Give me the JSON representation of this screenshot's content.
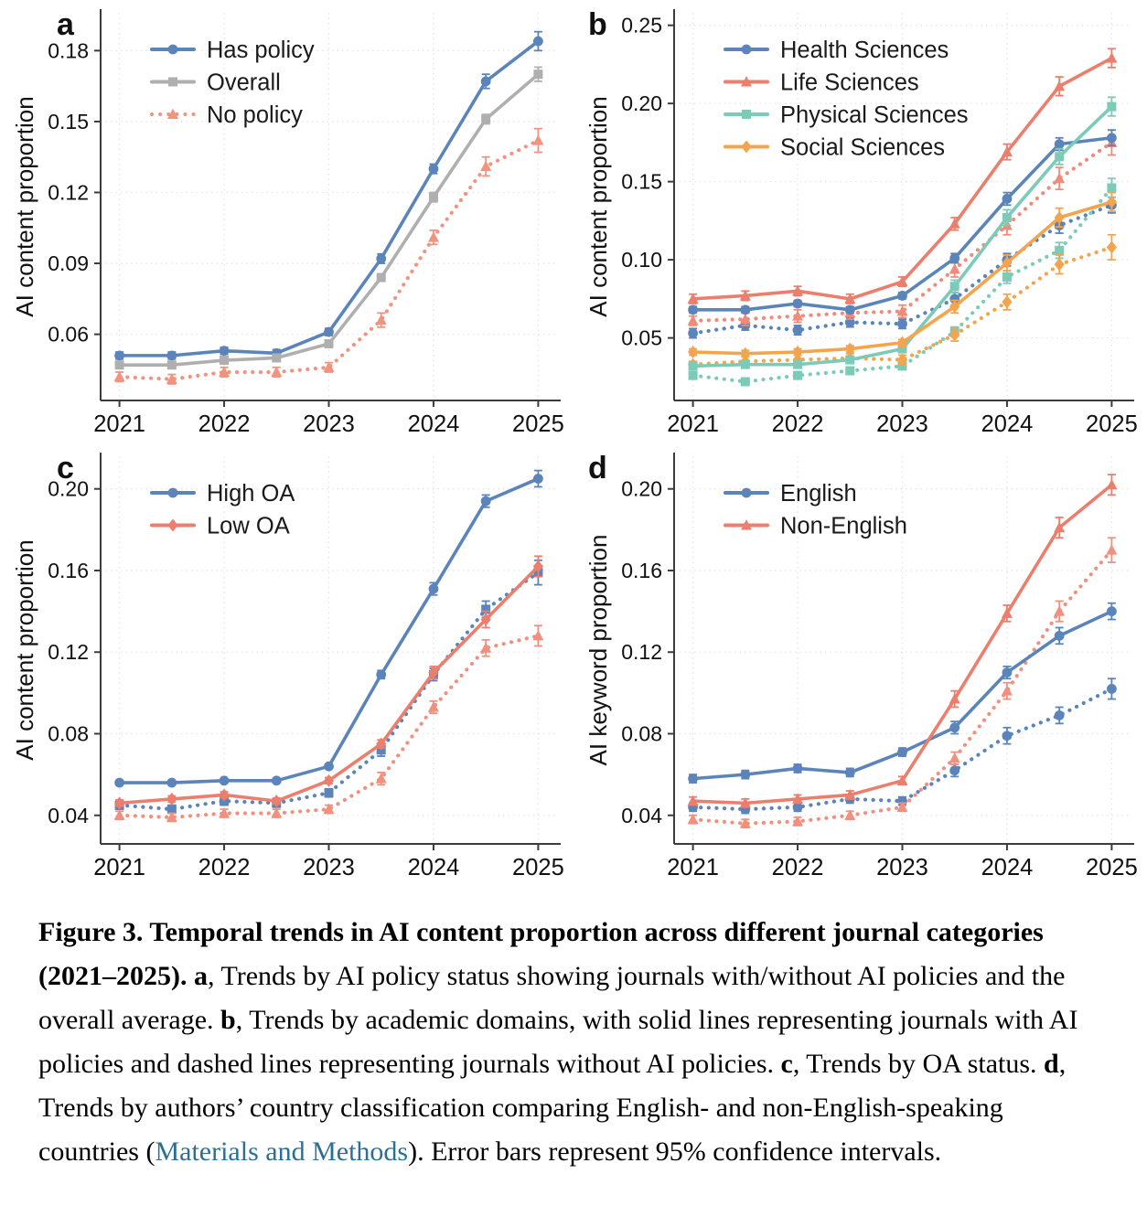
{
  "figure_label": "Figure 3",
  "chart_data": [
    {
      "type": "line",
      "panel_letter": "a",
      "ylabel": "AI content proportion",
      "yticks": [
        0.06,
        0.09,
        0.12,
        0.15,
        0.18
      ],
      "ylim": [
        0.032,
        0.196
      ],
      "x": [
        2021,
        2021.5,
        2022,
        2022.5,
        2023,
        2023.5,
        2024,
        2024.5,
        2025
      ],
      "xticks": [
        2021,
        2022,
        2023,
        2024,
        2025
      ],
      "xlim": [
        2020.82,
        2025.18
      ],
      "grid": true,
      "legend_position": "top-left",
      "series": [
        {
          "name": "Has policy",
          "color": "#5b84ba",
          "marker": "circle",
          "line": "solid",
          "legend": true,
          "values": [
            0.051,
            0.051,
            0.053,
            0.052,
            0.061,
            0.092,
            0.13,
            0.167,
            0.184
          ],
          "err": [
            0.0015,
            0.0015,
            0.0015,
            0.0015,
            0.0015,
            0.002,
            0.002,
            0.003,
            0.004
          ]
        },
        {
          "name": "Overall",
          "color": "#afafaf",
          "marker": "square",
          "line": "solid",
          "legend": true,
          "values": [
            0.047,
            0.047,
            0.049,
            0.05,
            0.056,
            0.084,
            0.118,
            0.151,
            0.17
          ],
          "err": [
            0.001,
            0.001,
            0.001,
            0.001,
            0.001,
            0.0015,
            0.002,
            0.002,
            0.003
          ]
        },
        {
          "name": "No policy",
          "color": "#f29380",
          "marker": "triangle",
          "line": "dotted",
          "legend": true,
          "values": [
            0.042,
            0.041,
            0.044,
            0.044,
            0.046,
            0.066,
            0.101,
            0.131,
            0.142
          ],
          "err": [
            0.002,
            0.002,
            0.002,
            0.002,
            0.002,
            0.003,
            0.003,
            0.004,
            0.005
          ]
        }
      ]
    },
    {
      "type": "line",
      "panel_letter": "b",
      "ylabel": "AI content proportion",
      "yticks": [
        0.05,
        0.1,
        0.15,
        0.2,
        0.25
      ],
      "ylim": [
        0.01,
        0.258
      ],
      "x": [
        2021,
        2021.5,
        2022,
        2022.5,
        2023,
        2023.5,
        2024,
        2024.5,
        2025
      ],
      "xticks": [
        2021,
        2022,
        2023,
        2024,
        2025
      ],
      "xlim": [
        2020.82,
        2025.18
      ],
      "grid": true,
      "legend_position": "top-left",
      "series": [
        {
          "name": "Health Sciences (no policy)",
          "color": "#5b84ba",
          "marker": "circle",
          "line": "dotted",
          "legend": false,
          "values": [
            0.053,
            0.058,
            0.055,
            0.06,
            0.059,
            0.075,
            0.1,
            0.122,
            0.135
          ],
          "err": [
            0.003,
            0.003,
            0.003,
            0.003,
            0.003,
            0.004,
            0.004,
            0.005,
            0.005
          ]
        },
        {
          "name": "Life Sciences (no policy)",
          "color": "#ef8b7b",
          "marker": "triangle",
          "line": "dotted",
          "legend": false,
          "values": [
            0.061,
            0.062,
            0.064,
            0.066,
            0.067,
            0.094,
            0.122,
            0.152,
            0.175
          ],
          "err": [
            0.003,
            0.004,
            0.004,
            0.004,
            0.004,
            0.005,
            0.006,
            0.007,
            0.008
          ]
        },
        {
          "name": "Physical Sciences (no policy)",
          "color": "#7ccbb8",
          "marker": "square",
          "line": "dotted",
          "legend": false,
          "values": [
            0.026,
            0.022,
            0.026,
            0.029,
            0.032,
            0.054,
            0.089,
            0.106,
            0.146
          ],
          "err": [
            0.002,
            0.002,
            0.002,
            0.002,
            0.002,
            0.003,
            0.004,
            0.005,
            0.006
          ]
        },
        {
          "name": "Social Sciences (no policy)",
          "color": "#f4a44c",
          "marker": "diamond",
          "line": "dotted",
          "legend": false,
          "values": [
            0.033,
            0.035,
            0.036,
            0.037,
            0.036,
            0.052,
            0.073,
            0.097,
            0.108
          ],
          "err": [
            0.002,
            0.003,
            0.003,
            0.003,
            0.003,
            0.004,
            0.005,
            0.006,
            0.008
          ]
        },
        {
          "name": "Health Sciences",
          "color": "#5b84ba",
          "marker": "circle",
          "line": "solid",
          "legend": true,
          "values": [
            0.068,
            0.068,
            0.072,
            0.068,
            0.077,
            0.101,
            0.139,
            0.174,
            0.178
          ],
          "err": [
            0.002,
            0.002,
            0.002,
            0.002,
            0.002,
            0.003,
            0.004,
            0.004,
            0.005
          ]
        },
        {
          "name": "Life Sciences",
          "color": "#ec7e6d",
          "marker": "triangle",
          "line": "solid",
          "legend": true,
          "values": [
            0.075,
            0.077,
            0.08,
            0.075,
            0.086,
            0.123,
            0.169,
            0.211,
            0.229
          ],
          "err": [
            0.003,
            0.003,
            0.003,
            0.003,
            0.003,
            0.004,
            0.005,
            0.006,
            0.006
          ]
        },
        {
          "name": "Physical Sciences",
          "color": "#7ccbb8",
          "marker": "square",
          "line": "solid",
          "legend": true,
          "values": [
            0.032,
            0.033,
            0.033,
            0.036,
            0.043,
            0.083,
            0.127,
            0.166,
            0.198
          ],
          "err": [
            0.002,
            0.002,
            0.002,
            0.002,
            0.002,
            0.004,
            0.005,
            0.005,
            0.006
          ]
        },
        {
          "name": "Social Sciences",
          "color": "#f4a44c",
          "marker": "diamond",
          "line": "solid",
          "legend": true,
          "values": [
            0.041,
            0.04,
            0.041,
            0.043,
            0.047,
            0.07,
            0.098,
            0.127,
            0.137
          ],
          "err": [
            0.002,
            0.002,
            0.002,
            0.002,
            0.002,
            0.004,
            0.005,
            0.006,
            0.006
          ]
        }
      ]
    },
    {
      "type": "line",
      "panel_letter": "c",
      "ylabel": "AI content proportion",
      "yticks": [
        0.04,
        0.08,
        0.12,
        0.16,
        0.2
      ],
      "ylim": [
        0.026,
        0.216
      ],
      "x": [
        2021,
        2021.5,
        2022,
        2022.5,
        2023,
        2023.5,
        2024,
        2024.5,
        2025
      ],
      "xticks": [
        2021,
        2022,
        2023,
        2024,
        2025
      ],
      "xlim": [
        2020.82,
        2025.18
      ],
      "grid": true,
      "legend_position": "top-left",
      "series": [
        {
          "name": "High OA (no policy)",
          "color": "#5b84ba",
          "marker": "square",
          "line": "dotted",
          "legend": false,
          "values": [
            0.045,
            0.043,
            0.047,
            0.046,
            0.051,
            0.072,
            0.109,
            0.141,
            0.159
          ],
          "err": [
            0.002,
            0.002,
            0.002,
            0.002,
            0.002,
            0.003,
            0.003,
            0.004,
            0.006
          ]
        },
        {
          "name": "Low OA (no policy)",
          "color": "#f09180",
          "marker": "triangle",
          "line": "dotted",
          "legend": false,
          "values": [
            0.04,
            0.039,
            0.041,
            0.041,
            0.043,
            0.058,
            0.093,
            0.122,
            0.128
          ],
          "err": [
            0.002,
            0.002,
            0.002,
            0.002,
            0.002,
            0.003,
            0.003,
            0.004,
            0.005
          ]
        },
        {
          "name": "High OA",
          "color": "#5b84ba",
          "marker": "circle",
          "line": "solid",
          "legend": true,
          "values": [
            0.056,
            0.056,
            0.057,
            0.057,
            0.064,
            0.109,
            0.151,
            0.194,
            0.205
          ],
          "err": [
            0.001,
            0.001,
            0.001,
            0.001,
            0.001,
            0.002,
            0.003,
            0.003,
            0.004
          ]
        },
        {
          "name": "Low OA",
          "color": "#ec7e6d",
          "marker": "diamond",
          "line": "solid",
          "legend": true,
          "values": [
            0.046,
            0.048,
            0.05,
            0.047,
            0.057,
            0.075,
            0.11,
            0.136,
            0.162
          ],
          "err": [
            0.0015,
            0.0015,
            0.0015,
            0.0015,
            0.0015,
            0.002,
            0.003,
            0.004,
            0.005
          ]
        }
      ]
    },
    {
      "type": "line",
      "panel_letter": "d",
      "ylabel": "AI keyword proportion",
      "yticks": [
        0.04,
        0.08,
        0.12,
        0.16,
        0.2
      ],
      "ylim": [
        0.026,
        0.216
      ],
      "x": [
        2021,
        2021.5,
        2022,
        2022.5,
        2023,
        2023.5,
        2024,
        2024.5,
        2025
      ],
      "xticks": [
        2021,
        2022,
        2023,
        2024,
        2025
      ],
      "xlim": [
        2020.82,
        2025.18
      ],
      "grid": true,
      "legend_position": "top-left",
      "series": [
        {
          "name": "English (no policy)",
          "color": "#5b84ba",
          "marker": "circle",
          "line": "dotted",
          "legend": false,
          "values": [
            0.044,
            0.043,
            0.044,
            0.048,
            0.047,
            0.062,
            0.079,
            0.089,
            0.102
          ],
          "err": [
            0.002,
            0.002,
            0.002,
            0.002,
            0.002,
            0.003,
            0.004,
            0.004,
            0.005
          ]
        },
        {
          "name": "Non-English (no policy)",
          "color": "#f09180",
          "marker": "triangle",
          "line": "dotted",
          "legend": false,
          "values": [
            0.038,
            0.036,
            0.037,
            0.04,
            0.044,
            0.068,
            0.101,
            0.14,
            0.17
          ],
          "err": [
            0.002,
            0.002,
            0.002,
            0.002,
            0.002,
            0.003,
            0.004,
            0.005,
            0.006
          ]
        },
        {
          "name": "English",
          "color": "#5b84ba",
          "marker": "circle",
          "line": "solid",
          "legend": true,
          "values": [
            0.058,
            0.06,
            0.063,
            0.061,
            0.071,
            0.083,
            0.11,
            0.128,
            0.14
          ],
          "err": [
            0.002,
            0.002,
            0.002,
            0.002,
            0.002,
            0.003,
            0.003,
            0.004,
            0.004
          ]
        },
        {
          "name": "Non-English",
          "color": "#ec7e6d",
          "marker": "triangle",
          "line": "solid",
          "legend": true,
          "values": [
            0.047,
            0.046,
            0.048,
            0.05,
            0.057,
            0.097,
            0.139,
            0.181,
            0.202
          ],
          "err": [
            0.002,
            0.002,
            0.002,
            0.002,
            0.002,
            0.004,
            0.004,
            0.005,
            0.005
          ]
        }
      ]
    }
  ],
  "caption": {
    "link_color": "#2b6f94",
    "segments": [
      {
        "text": "Figure 3. Temporal trends in AI content proportion across different journal categories (2021–2025). ",
        "bold": true
      },
      {
        "text": "a",
        "bold": true
      },
      {
        "text": ", Trends by AI policy status showing journals with/without AI policies and the overall average. "
      },
      {
        "text": "b",
        "bold": true
      },
      {
        "text": ", Trends by academic domains, with solid lines representing journals with AI policies and dashed lines representing journals without AI policies. "
      },
      {
        "text": "c",
        "bold": true
      },
      {
        "text": ", Trends by OA status. "
      },
      {
        "text": "d",
        "bold": true
      },
      {
        "text": ", Trends by authors’ country classification comparing English- and non-English-speaking countries ("
      },
      {
        "text": "Materials and Methods",
        "link": true
      },
      {
        "text": "). Error bars represent 95% confidence intervals."
      }
    ]
  }
}
